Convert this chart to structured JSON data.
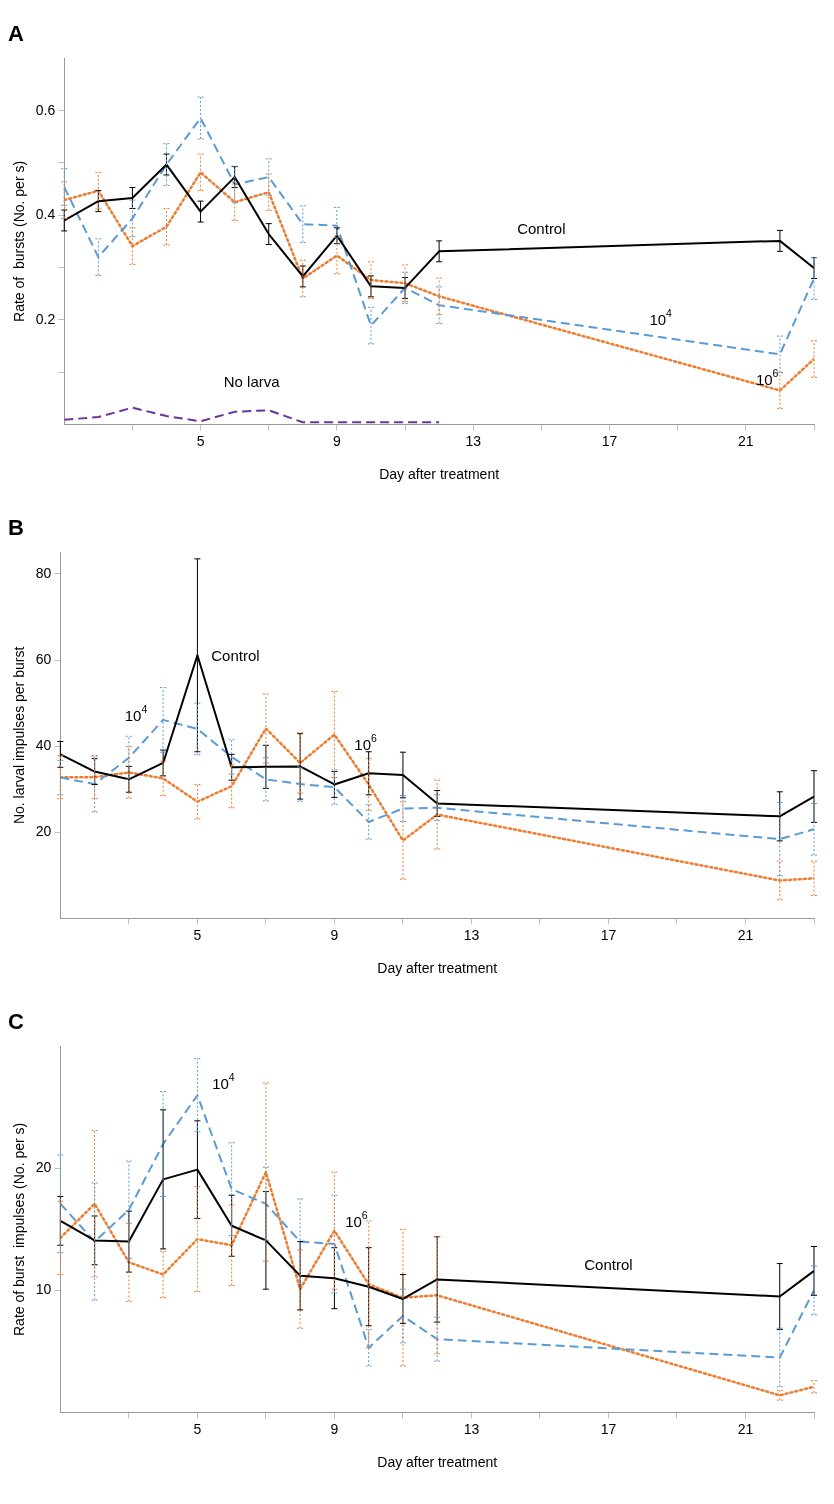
{
  "chart_data": [
    {
      "type": "line",
      "title": "A",
      "xlabel": "Day after treatment",
      "ylabel": "Rate of  bursts (No. per s)",
      "x": [
        1,
        2,
        3,
        4,
        5,
        6,
        7,
        8,
        9,
        10,
        11,
        12,
        22,
        23
      ],
      "xlim": [
        1,
        23
      ],
      "xticks": [
        {
          "value": 3,
          "label": null
        },
        5,
        {
          "value": 7,
          "label": null
        },
        9,
        {
          "value": 11,
          "label": null
        },
        13,
        {
          "value": 15,
          "label": null
        },
        17,
        {
          "value": 19,
          "label": null
        },
        21,
        {
          "value": 23,
          "label": null
        }
      ],
      "ylim": [
        0,
        0.7
      ],
      "yticks": [
        {
          "value": 0.1,
          "label": null
        },
        0.2,
        {
          "value": 0.3,
          "label": null
        },
        0.4,
        {
          "value": 0.5,
          "label": null
        },
        0.6
      ],
      "grid": false,
      "legend": false,
      "marker": "none",
      "series": [
        {
          "name": "Control",
          "color": "#000000",
          "line_style": "solid",
          "values": [
            0.39,
            0.427,
            0.433,
            0.497,
            0.407,
            0.473,
            0.364,
            0.283,
            0.361,
            0.264,
            0.261,
            0.331,
            0.351,
            0.299
          ],
          "errors": [
            0.02,
            0.02,
            0.02,
            0.02,
            0.02,
            0.02,
            0.02,
            0.02,
            0.015,
            0.02,
            0.02,
            0.02,
            0.02,
            0.02
          ]
        },
        {
          "name": "10$^{4}$",
          "color": "#5b9bd5",
          "line_style": "dashed",
          "values": [
            0.454,
            0.32,
            0.394,
            0.497,
            0.586,
            0.459,
            0.473,
            0.383,
            0.38,
            0.189,
            0.261,
            0.228,
            0.134,
            0.279
          ],
          "errors": [
            0.035,
            0.035,
            0.035,
            0.04,
            0.04,
            0.035,
            0.035,
            0.035,
            0.035,
            0.035,
            0.03,
            0.035,
            0.035,
            0.04
          ]
        },
        {
          "name": "10$^{6}$",
          "color": "#ed7d31",
          "line_style": "dotted",
          "values": [
            0.429,
            0.447,
            0.341,
            0.378,
            0.482,
            0.425,
            0.444,
            0.279,
            0.323,
            0.276,
            0.27,
            0.245,
            0.065,
            0.125
          ],
          "errors": [
            0.035,
            0.035,
            0.035,
            0.035,
            0.035,
            0.035,
            0.035,
            0.035,
            0.035,
            0.035,
            0.035,
            0.035,
            0.035,
            0.035
          ]
        },
        {
          "name": "No larva",
          "color": "#7030a0",
          "line_style": "dashed",
          "x": [
            1,
            2,
            3,
            4,
            5,
            6,
            7,
            8,
            9,
            10,
            11,
            12
          ],
          "values": [
            0.009,
            0.014,
            0.032,
            0.016,
            0.006,
            0.024,
            0.027,
            0.004,
            0.004,
            0.004,
            0.004,
            0.004
          ]
        }
      ]
    },
    {
      "type": "line",
      "title": "B",
      "xlabel": "Day after treatment",
      "ylabel": "No. larval impulses per burst",
      "x": [
        1,
        2,
        3,
        4,
        5,
        6,
        7,
        8,
        9,
        10,
        11,
        12,
        22,
        23
      ],
      "xlim": [
        1,
        23
      ],
      "xticks": [
        {
          "value": 3,
          "label": null
        },
        5,
        {
          "value": 7,
          "label": null
        },
        9,
        {
          "value": 11,
          "label": null
        },
        13,
        {
          "value": 15,
          "label": null
        },
        17,
        {
          "value": 19,
          "label": null
        },
        21,
        {
          "value": 23,
          "label": null
        }
      ],
      "ylim": [
        0,
        85
      ],
      "yticks": [
        20,
        40,
        60,
        80
      ],
      "grid": false,
      "legend": false,
      "marker": "none",
      "series": [
        {
          "name": "Control",
          "color": "#000000",
          "line_style": "solid",
          "values": [
            38.1,
            34.1,
            32.3,
            36.1,
            61.1,
            35.1,
            35.2,
            35.3,
            31.1,
            33.7,
            33.3,
            26.7,
            23.7,
            28.3
          ],
          "errors": [
            3,
            3,
            3,
            3,
            22.4,
            3,
            5,
            7.6,
            3,
            5,
            5.3,
            3,
            5.7,
            6
          ]
        },
        {
          "name": "10$^{4}$",
          "color": "#5b9bd5",
          "line_style": "dashed",
          "values": [
            32.7,
            31.2,
            37.3,
            46.1,
            44,
            37.5,
            32.3,
            31.2,
            30.5,
            22.4,
            25.5,
            25.7,
            18.4,
            20.7
          ],
          "errors": [
            4,
            6.5,
            5,
            7.5,
            6,
            4,
            5,
            4,
            4,
            4,
            3,
            3,
            8.5,
            6
          ]
        },
        {
          "name": "10$^{6}$",
          "color": "#ed7d31",
          "line_style": "dotted",
          "values": [
            32.8,
            32.8,
            33.9,
            32.5,
            27.1,
            30.7,
            44.1,
            36.1,
            42.7,
            31.1,
            18.1,
            24.1,
            8.8,
            9.3
          ],
          "errors": [
            5,
            5,
            6,
            4,
            4,
            5,
            8,
            7,
            10,
            6,
            9,
            8,
            4.5,
            4
          ]
        }
      ]
    },
    {
      "type": "line",
      "title": "C",
      "xlabel": "Day after treatment",
      "ylabel": "Rate of burst  impulses (No. per s)",
      "x": [
        1,
        2,
        3,
        4,
        5,
        6,
        7,
        8,
        9,
        10,
        11,
        12,
        22,
        23
      ],
      "xlim": [
        1,
        23
      ],
      "xticks": [
        {
          "value": 3,
          "label": null
        },
        5,
        {
          "value": 7,
          "label": null
        },
        9,
        {
          "value": 11,
          "label": null
        },
        13,
        {
          "value": 15,
          "label": null
        },
        17,
        {
          "value": 19,
          "label": null
        },
        21,
        {
          "value": 23,
          "label": null
        }
      ],
      "ylim": [
        0,
        30
      ],
      "yticks": [
        10,
        20
      ],
      "grid": false,
      "legend": false,
      "marker": "none",
      "series": [
        {
          "name": "Control",
          "color": "#000000",
          "line_style": "solid",
          "values": [
            15.7,
            14.1,
            14,
            19.1,
            19.9,
            15.3,
            14.1,
            11.2,
            11,
            10.3,
            9.3,
            10.9,
            9.5,
            11.6
          ],
          "errors": [
            2,
            2,
            2.5,
            5.7,
            4,
            2.5,
            4,
            2.8,
            2.5,
            3.2,
            2,
            3.5,
            2.7,
            2
          ]
        },
        {
          "name": "10$^{4}$",
          "color": "#5b9bd5",
          "line_style": "dashed",
          "values": [
            17.1,
            14,
            16.6,
            22,
            26,
            18.3,
            17.1,
            14,
            13.8,
            5.3,
            7.9,
            6,
            4.5,
            10
          ],
          "errors": [
            4,
            4.8,
            4,
            4.3,
            3,
            3.8,
            3,
            3.5,
            4,
            1.5,
            2.2,
            1.8,
            2.4,
            2
          ]
        },
        {
          "name": "10$^{6}$",
          "color": "#ed7d31",
          "line_style": "dotted",
          "values": [
            14.3,
            17.1,
            12.3,
            11.3,
            14.2,
            13.7,
            19.7,
            10.1,
            14.9,
            10.5,
            9.4,
            9.6,
            1.4,
            2.1
          ],
          "errors": [
            3,
            6,
            3.2,
            1.9,
            4.3,
            3.3,
            7.3,
            3.2,
            4.8,
            5.2,
            5.6,
            4.8,
            0.4,
            0.5
          ]
        }
      ]
    }
  ]
}
